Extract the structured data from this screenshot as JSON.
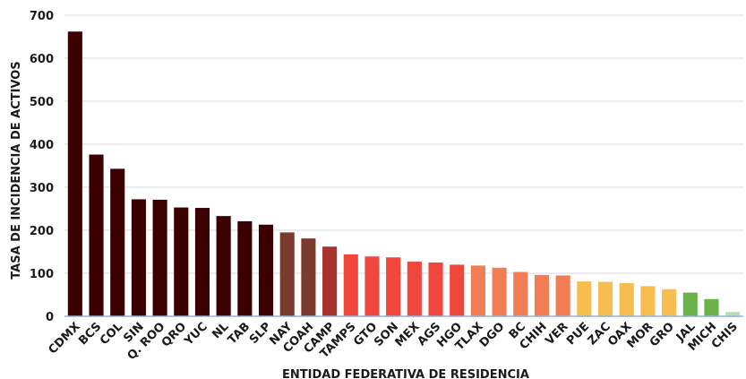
{
  "chart_data": {
    "type": "bar",
    "xlabel": "ENTIDAD FEDERATIVA DE RESIDENCIA",
    "ylabel": "TASA DE INCIDENCIA DE ACTIVOS",
    "ylim": [
      0,
      700
    ],
    "yticks": [
      0,
      100,
      200,
      300,
      400,
      500,
      600,
      700
    ],
    "grid": true,
    "categories": [
      "CDMX",
      "BCS",
      "COL",
      "SIN",
      "Q. ROO",
      "QRO",
      "YUC",
      "NL",
      "TAB",
      "SLP",
      "NAY",
      "COAH",
      "CAMP",
      "TAMPS",
      "GTO",
      "SON",
      "MEX",
      "AGS",
      "HGO",
      "TLAX",
      "DGO",
      "BC",
      "CHIH",
      "VER",
      "PUE",
      "ZAC",
      "OAX",
      "MOR",
      "GRO",
      "JAL",
      "MICH",
      "CHIS"
    ],
    "values": [
      662,
      376,
      343,
      272,
      271,
      253,
      252,
      233,
      221,
      213,
      195,
      181,
      162,
      144,
      139,
      137,
      127,
      125,
      120,
      118,
      113,
      103,
      96,
      95,
      81,
      80,
      77,
      70,
      63,
      55,
      40,
      10
    ],
    "colors": [
      "#3d0000",
      "#3d0000",
      "#3d0000",
      "#3d0000",
      "#3d0000",
      "#3d0000",
      "#3d0000",
      "#3d0000",
      "#3d0000",
      "#3d0000",
      "#7a3b2e",
      "#7a3b2e",
      "#a8332d",
      "#f0473c",
      "#f0473c",
      "#f0473c",
      "#f0473c",
      "#f0473c",
      "#f0473c",
      "#f27d54",
      "#f27d54",
      "#f27d54",
      "#f27d54",
      "#f27d54",
      "#f7bd4e",
      "#f7bd4e",
      "#f7bd4e",
      "#f7bd4e",
      "#f7bd4e",
      "#6ab34a",
      "#6ab34a",
      "#b9dcb5"
    ]
  }
}
